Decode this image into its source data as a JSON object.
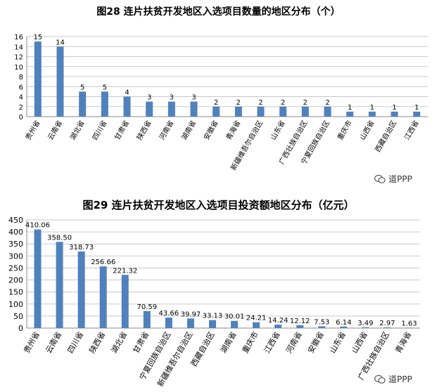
{
  "chart_data": [
    {
      "type": "bar",
      "title": "图28  连片扶贫开发地区入选项目数量的地区分布（个）",
      "categories": [
        "贵州省",
        "云南省",
        "湖北省",
        "四川省",
        "甘肃省",
        "陕西省",
        "河南省",
        "湖南省",
        "安徽省",
        "青海省",
        "新疆维吾尔自治区",
        "山东省",
        "广西壮族自治区",
        "宁夏回族自治区",
        "重庆市",
        "山西省",
        "西藏自治区",
        "江西省"
      ],
      "values": [
        15,
        14,
        5,
        5,
        4,
        3,
        3,
        3,
        2,
        2,
        2,
        2,
        2,
        2,
        1,
        1,
        1,
        1
      ],
      "value_labels": [
        "15",
        "14",
        "5",
        "5",
        "4",
        "3",
        "3",
        "3",
        "2",
        "2",
        "2",
        "2",
        "2",
        "2",
        "1",
        "1",
        "1",
        "1"
      ],
      "ylim": [
        0,
        16
      ],
      "yticks": [
        "0",
        "2",
        "4",
        "6",
        "8",
        "10",
        "12",
        "14",
        "16"
      ],
      "grid": true,
      "bar_color": "#4f81bd",
      "xlabel": "",
      "ylabel": ""
    },
    {
      "type": "bar",
      "title": "图29  连片扶贫开发地区入选项目投资额地区分布（亿元）",
      "categories": [
        "贵州省",
        "云南省",
        "四川省",
        "陕西省",
        "湖北省",
        "甘肃省",
        "宁夏回族自治区",
        "新疆维吾尔自治区",
        "西藏自治区",
        "湖南省",
        "重庆市",
        "江西省",
        "河南省",
        "安徽省",
        "山东省",
        "山西省",
        "广西壮族自治区",
        "青海省"
      ],
      "values": [
        410.06,
        358.5,
        318.73,
        256.66,
        221.32,
        70.59,
        43.66,
        39.97,
        33.13,
        30.01,
        24.21,
        14.24,
        12.12,
        7.53,
        6.14,
        3.49,
        2.97,
        1.63
      ],
      "value_labels": [
        "410.06",
        "358.50",
        "318.73",
        "256.66",
        "221.32",
        "70.59",
        "43.66",
        "39.97",
        "33.13",
        "30.01",
        "24.21",
        "14.24",
        "12.12",
        "7.53",
        "6.14",
        "3.49",
        "2.97",
        "1.63"
      ],
      "ylim": [
        0,
        450
      ],
      "yticks": [
        "0",
        "50",
        "100",
        "150",
        "200",
        "250",
        "300",
        "350",
        "400",
        "450"
      ],
      "grid": true,
      "bar_color": "#4f81bd",
      "xlabel": "",
      "ylabel": ""
    }
  ],
  "watermark": {
    "text": "道PPP",
    "icon": "wechat-icon"
  }
}
